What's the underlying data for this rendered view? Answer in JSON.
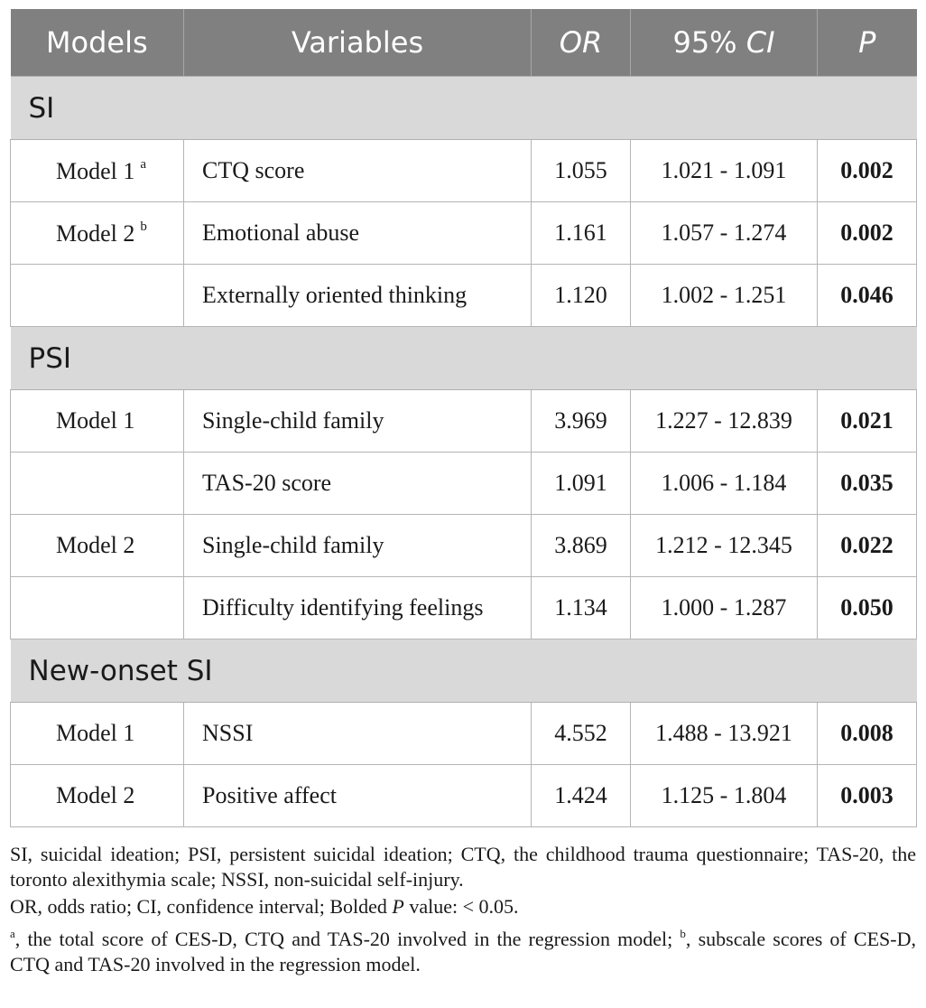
{
  "header": {
    "models": "Models",
    "variables": "Variables",
    "or": "OR",
    "ci": "95% CI",
    "p": "P"
  },
  "sections": [
    {
      "title": "SI",
      "rows": [
        {
          "model": "Model 1",
          "sup": "a",
          "variable": "CTQ score",
          "or": "1.055",
          "ci": "1.021 - 1.091",
          "p": "0.002"
        },
        {
          "model": "Model 2",
          "sup": "b",
          "variable": "Emotional abuse",
          "or": "1.161",
          "ci": "1.057 - 1.274",
          "p": "0.002"
        },
        {
          "model": "",
          "sup": "",
          "variable": "Externally oriented thinking",
          "or": "1.120",
          "ci": "1.002 - 1.251",
          "p": "0.046"
        }
      ]
    },
    {
      "title": "PSI",
      "rows": [
        {
          "model": "Model 1",
          "sup": "",
          "variable": "Single-child family",
          "or": "3.969",
          "ci": "1.227 - 12.839",
          "p": "0.021"
        },
        {
          "model": "",
          "sup": "",
          "variable": "TAS-20 score",
          "or": "1.091",
          "ci": "1.006 - 1.184",
          "p": "0.035"
        },
        {
          "model": "Model 2",
          "sup": "",
          "variable": "Single-child family",
          "or": "3.869",
          "ci": "1.212 - 12.345",
          "p": "0.022"
        },
        {
          "model": "",
          "sup": "",
          "variable": "Difficulty identifying feelings",
          "or": "1.134",
          "ci": "1.000 - 1.287",
          "p": "0.050"
        }
      ]
    },
    {
      "title": "New-onset SI",
      "rows": [
        {
          "model": "Model 1",
          "sup": "",
          "variable": "NSSI",
          "or": "4.552",
          "ci": "1.488 - 13.921",
          "p": "0.008"
        },
        {
          "model": "Model 2",
          "sup": "",
          "variable": "Positive affect",
          "or": "1.424",
          "ci": "1.125 - 1.804",
          "p": "0.003"
        }
      ]
    }
  ],
  "notes": {
    "line1": "SI, suicidal ideation; PSI, persistent suicidal ideation; CTQ, the childhood trauma questionnaire; TAS-20, the toronto alexithymia scale; NSSI, non-suicidal self-injury.",
    "line2_prefix": "OR, odds ratio; CI, confidence interval; Bolded ",
    "line2_p": "P",
    "line2_suffix": " value: < 0.05.",
    "sup_a": "a",
    "line3_a": ", the total score of CES-D, CTQ and TAS-20 involved in the regression model; ",
    "sup_b": "b",
    "line3_b": ", subscale scores of CES-D, CTQ and TAS-20 involved in the regression model."
  }
}
